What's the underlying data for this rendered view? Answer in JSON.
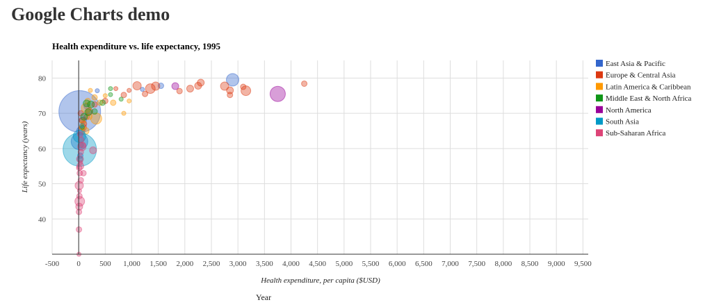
{
  "page": {
    "title": "Google Charts demo",
    "footer_label": "Year"
  },
  "chart_data": {
    "type": "bubble",
    "title": "Health expenditure vs. life expectancy, 1995",
    "xlabel": "Health expenditure, per capita ($USD)",
    "ylabel": "Life expectancy (years)",
    "xlim": [
      -500,
      9600
    ],
    "ylim": [
      30,
      85
    ],
    "x_ticks": [
      -500,
      0,
      500,
      1000,
      1500,
      2000,
      2500,
      3000,
      3500,
      4000,
      4500,
      5000,
      5500,
      6000,
      6500,
      7000,
      7500,
      8000,
      8500,
      9000,
      9500
    ],
    "x_tick_labels": [
      "-500",
      "0",
      "500",
      "1,000",
      "1,500",
      "2,000",
      "2,500",
      "3,000",
      "3,500",
      "4,000",
      "4,500",
      "5,000",
      "5,500",
      "6,000",
      "6,500",
      "7,000",
      "7,500",
      "8,000",
      "8,500",
      "9,000",
      "9,500"
    ],
    "y_ticks": [
      40,
      50,
      60,
      70,
      80
    ],
    "y_tick_labels": [
      "40",
      "50",
      "60",
      "70",
      "80"
    ],
    "grid": true,
    "legend_position": "right",
    "series": [
      {
        "name": "East Asia & Pacific",
        "color": "#3366cc",
        "points": [
          {
            "x": 20,
            "y": 70.5,
            "size": 30
          },
          {
            "x": 15,
            "y": 62,
            "size": 12
          },
          {
            "x": 40,
            "y": 65,
            "size": 6
          },
          {
            "x": 80,
            "y": 68,
            "size": 5
          },
          {
            "x": 2900,
            "y": 79.5,
            "size": 9
          },
          {
            "x": 1550,
            "y": 77.8,
            "size": 4
          },
          {
            "x": 1200,
            "y": 76.8,
            "size": 3
          },
          {
            "x": 350,
            "y": 76.4,
            "size": 3
          },
          {
            "x": 150,
            "y": 72,
            "size": 4
          },
          {
            "x": 30,
            "y": 58,
            "size": 4
          }
        ]
      },
      {
        "name": "Europe & Central Asia",
        "color": "#dc3912",
        "points": [
          {
            "x": 1100,
            "y": 77.8,
            "size": 6
          },
          {
            "x": 1450,
            "y": 77.7,
            "size": 6
          },
          {
            "x": 1350,
            "y": 77,
            "size": 7
          },
          {
            "x": 1250,
            "y": 75.5,
            "size": 4
          },
          {
            "x": 1900,
            "y": 76.3,
            "size": 4
          },
          {
            "x": 2100,
            "y": 77,
            "size": 5
          },
          {
            "x": 2250,
            "y": 77.8,
            "size": 5
          },
          {
            "x": 2300,
            "y": 78.7,
            "size": 5
          },
          {
            "x": 2750,
            "y": 77.7,
            "size": 6
          },
          {
            "x": 2850,
            "y": 76.5,
            "size": 5
          },
          {
            "x": 2850,
            "y": 75.2,
            "size": 4
          },
          {
            "x": 3100,
            "y": 77.5,
            "size": 4
          },
          {
            "x": 3150,
            "y": 76.4,
            "size": 7
          },
          {
            "x": 4250,
            "y": 78.4,
            "size": 4
          },
          {
            "x": 950,
            "y": 76.5,
            "size": 3
          },
          {
            "x": 850,
            "y": 75.2,
            "size": 4
          },
          {
            "x": 500,
            "y": 73.5,
            "size": 4
          },
          {
            "x": 300,
            "y": 72.5,
            "size": 4
          },
          {
            "x": 200,
            "y": 70.5,
            "size": 5
          },
          {
            "x": 150,
            "y": 69,
            "size": 4
          },
          {
            "x": 100,
            "y": 67,
            "size": 4
          },
          {
            "x": 80,
            "y": 66,
            "size": 5
          },
          {
            "x": 60,
            "y": 68,
            "size": 4
          },
          {
            "x": 40,
            "y": 70,
            "size": 4
          },
          {
            "x": 700,
            "y": 77,
            "size": 3
          }
        ]
      },
      {
        "name": "Latin America & Caribbean",
        "color": "#ff9900",
        "points": [
          {
            "x": 330,
            "y": 68.5,
            "size": 8
          },
          {
            "x": 140,
            "y": 71.5,
            "size": 7
          },
          {
            "x": 220,
            "y": 76.5,
            "size": 3
          },
          {
            "x": 300,
            "y": 74.5,
            "size": 4
          },
          {
            "x": 400,
            "y": 73,
            "size": 4
          },
          {
            "x": 500,
            "y": 75,
            "size": 3
          },
          {
            "x": 650,
            "y": 73,
            "size": 4
          },
          {
            "x": 850,
            "y": 70,
            "size": 3
          },
          {
            "x": 950,
            "y": 73.5,
            "size": 3
          },
          {
            "x": 130,
            "y": 65,
            "size": 5
          },
          {
            "x": 80,
            "y": 67.5,
            "size": 4
          },
          {
            "x": 60,
            "y": 66,
            "size": 4
          },
          {
            "x": 200,
            "y": 69,
            "size": 4
          },
          {
            "x": 170,
            "y": 73.5,
            "size": 4
          }
        ]
      },
      {
        "name": "Middle East & North Africa",
        "color": "#109618",
        "points": [
          {
            "x": 100,
            "y": 69,
            "size": 5
          },
          {
            "x": 230,
            "y": 72.5,
            "size": 5
          },
          {
            "x": 300,
            "y": 70.5,
            "size": 4
          },
          {
            "x": 450,
            "y": 73,
            "size": 4
          },
          {
            "x": 600,
            "y": 77,
            "size": 3
          },
          {
            "x": 600,
            "y": 75.3,
            "size": 3
          },
          {
            "x": 800,
            "y": 74,
            "size": 3
          },
          {
            "x": 180,
            "y": 70.3,
            "size": 5
          },
          {
            "x": 70,
            "y": 66,
            "size": 3
          },
          {
            "x": 150,
            "y": 72.8,
            "size": 5
          }
        ]
      },
      {
        "name": "North America",
        "color": "#990099",
        "points": [
          {
            "x": 3750,
            "y": 75.5,
            "size": 11
          },
          {
            "x": 1820,
            "y": 77.7,
            "size": 5
          }
        ]
      },
      {
        "name": "South Asia",
        "color": "#0099c6",
        "points": [
          {
            "x": 20,
            "y": 59.7,
            "size": 24
          },
          {
            "x": 15,
            "y": 63.5,
            "size": 9
          },
          {
            "x": 40,
            "y": 61,
            "size": 4
          },
          {
            "x": 25,
            "y": 57,
            "size": 4
          },
          {
            "x": 60,
            "y": 66.5,
            "size": 3
          }
        ]
      },
      {
        "name": "Sub-Saharan Africa",
        "color": "#dd4477",
        "points": [
          {
            "x": 20,
            "y": 45,
            "size": 7
          },
          {
            "x": 10,
            "y": 49.5,
            "size": 6
          },
          {
            "x": 10,
            "y": 43.5,
            "size": 5
          },
          {
            "x": 5,
            "y": 42,
            "size": 4
          },
          {
            "x": 15,
            "y": 46.5,
            "size": 4
          },
          {
            "x": 20,
            "y": 53,
            "size": 4
          },
          {
            "x": 30,
            "y": 55,
            "size": 5
          },
          {
            "x": 25,
            "y": 57,
            "size": 5
          },
          {
            "x": 60,
            "y": 60.5,
            "size": 6
          },
          {
            "x": 40,
            "y": 59,
            "size": 4
          },
          {
            "x": 80,
            "y": 61,
            "size": 4
          },
          {
            "x": 270,
            "y": 59.5,
            "size": 5
          },
          {
            "x": 90,
            "y": 53,
            "size": 4
          },
          {
            "x": 40,
            "y": 51,
            "size": 4
          },
          {
            "x": 10,
            "y": 54.5,
            "size": 4
          },
          {
            "x": 30,
            "y": 64,
            "size": 4
          },
          {
            "x": 5,
            "y": 37,
            "size": 4
          },
          {
            "x": 15,
            "y": 48,
            "size": 3
          },
          {
            "x": 35,
            "y": 56,
            "size": 3
          },
          {
            "x": 50,
            "y": 62.5,
            "size": 4
          },
          {
            "x": 5,
            "y": 30,
            "size": 3
          }
        ]
      }
    ]
  }
}
